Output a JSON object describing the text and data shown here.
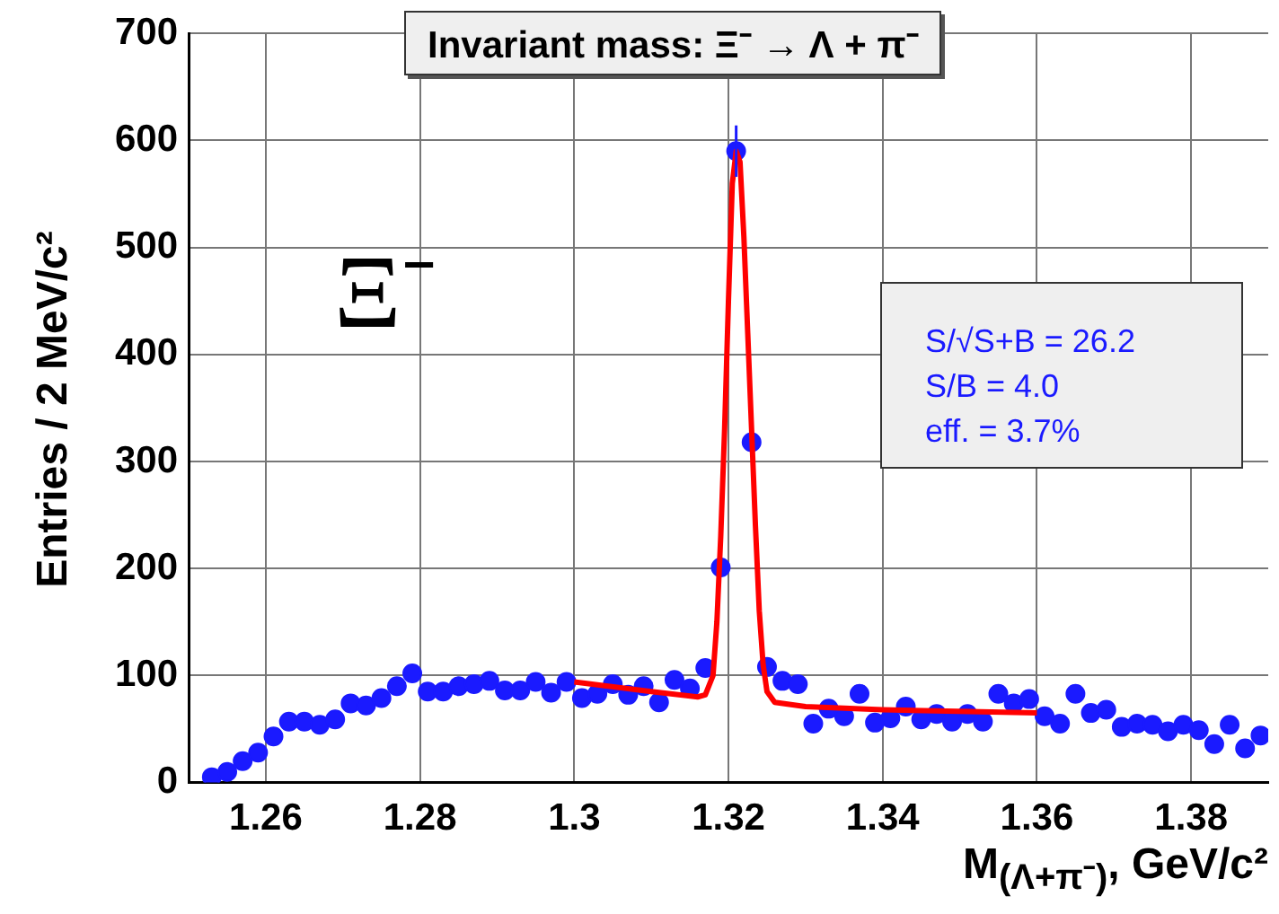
{
  "chart_data": {
    "type": "scatter",
    "title": "Invariant mass: Ξ⁻ → Λ + π⁻",
    "xlabel": "M$_{(Λ+π⁻)}$, GeV/c²",
    "ylabel": "Entries / 2 MeV/c²",
    "xlim": [
      1.25,
      1.39
    ],
    "xticks": [
      1.26,
      1.28,
      1.3,
      1.32,
      1.34,
      1.36,
      1.38
    ],
    "ylim": [
      0,
      700
    ],
    "yticks": [
      0,
      100,
      200,
      300,
      400,
      500,
      600,
      700
    ],
    "grid": true,
    "legend": false,
    "annotations": [
      "Ξ⁻",
      "S/√S+B = 26.2",
      "S/B = 4.0",
      "eff. = 3.7%"
    ],
    "series": [
      {
        "type": "scatter",
        "color": "#1a1aff",
        "marker": "circle",
        "x": [
          1.253,
          1.255,
          1.257,
          1.259,
          1.261,
          1.263,
          1.265,
          1.267,
          1.269,
          1.271,
          1.273,
          1.275,
          1.277,
          1.279,
          1.281,
          1.283,
          1.285,
          1.287,
          1.289,
          1.291,
          1.293,
          1.295,
          1.297,
          1.299,
          1.301,
          1.303,
          1.305,
          1.307,
          1.309,
          1.311,
          1.313,
          1.315,
          1.317,
          1.319,
          1.321,
          1.323,
          1.325,
          1.327,
          1.329,
          1.331,
          1.333,
          1.335,
          1.337,
          1.339,
          1.341,
          1.343,
          1.345,
          1.347,
          1.349,
          1.351,
          1.353,
          1.355,
          1.357,
          1.359,
          1.361,
          1.363,
          1.365,
          1.367,
          1.369,
          1.371,
          1.373,
          1.375,
          1.377,
          1.379,
          1.381,
          1.383,
          1.385,
          1.387,
          1.389
        ],
        "values": [
          5,
          10,
          20,
          28,
          43,
          57,
          57,
          54,
          59,
          74,
          72,
          79,
          90,
          102,
          85,
          85,
          90,
          92,
          95,
          86,
          86,
          94,
          84,
          94,
          79,
          83,
          92,
          82,
          90,
          75,
          96,
          88,
          107,
          201,
          590,
          318,
          108,
          95,
          92,
          55,
          69,
          62,
          83,
          56,
          60,
          71,
          59,
          64,
          57,
          64,
          57,
          83,
          74,
          78,
          62,
          55,
          83,
          65,
          68,
          52,
          55,
          54,
          48,
          54,
          49,
          36,
          54,
          32,
          44
        ],
        "errors": [
          null,
          null,
          null,
          null,
          null,
          null,
          null,
          null,
          null,
          null,
          null,
          null,
          null,
          null,
          null,
          null,
          null,
          null,
          null,
          null,
          null,
          null,
          null,
          null,
          null,
          null,
          null,
          null,
          null,
          null,
          null,
          null,
          null,
          null,
          24,
          null,
          null,
          null,
          null,
          null,
          null,
          null,
          null,
          null,
          null,
          null,
          null,
          null,
          null,
          null,
          null,
          null,
          null,
          null,
          null,
          null,
          null,
          null,
          null,
          null,
          null,
          null,
          null,
          null,
          null,
          null,
          null,
          null,
          null
        ]
      },
      {
        "type": "line",
        "color": "#ff0000",
        "marker": "none",
        "x": [
          1.3,
          1.31,
          1.316,
          1.317,
          1.318,
          1.3185,
          1.319,
          1.3195,
          1.32,
          1.3205,
          1.321,
          1.3215,
          1.322,
          1.3225,
          1.323,
          1.3235,
          1.324,
          1.3245,
          1.325,
          1.326,
          1.33,
          1.34,
          1.36
        ],
        "values": [
          94,
          85,
          80,
          82,
          100,
          150,
          230,
          330,
          450,
          560,
          590,
          580,
          510,
          420,
          330,
          240,
          160,
          110,
          85,
          75,
          71,
          68,
          65
        ]
      }
    ]
  }
}
